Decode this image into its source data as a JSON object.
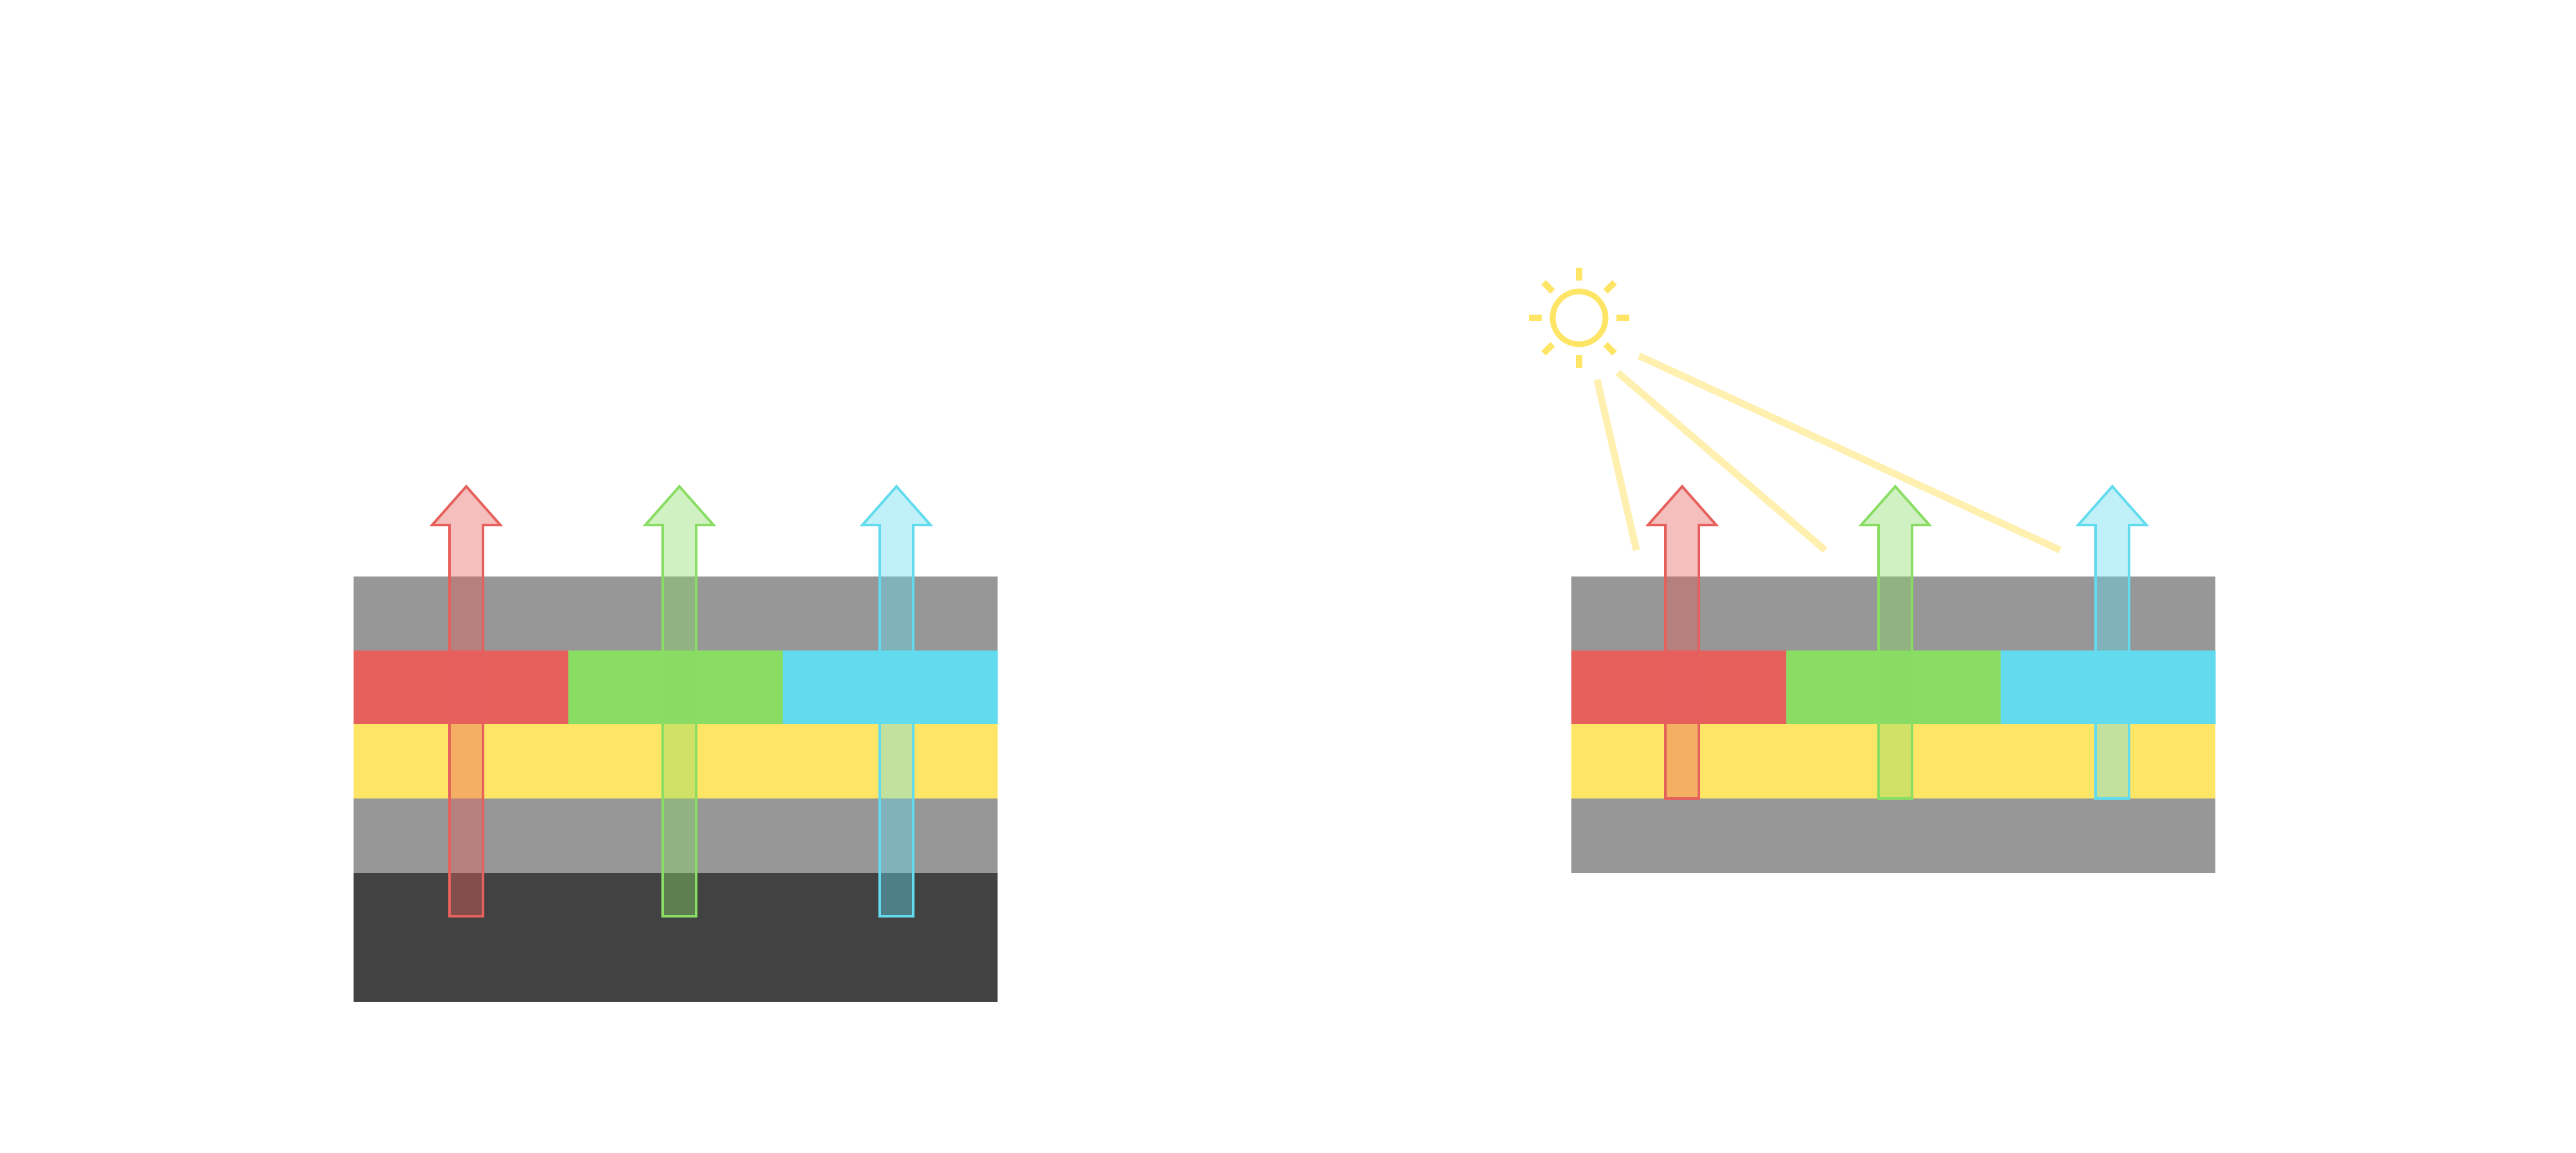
{
  "colors": {
    "background": "#ffffff",
    "gray_layer": "#979797",
    "dark_layer": "#424242",
    "red": "#e6605c",
    "green": "#89dd63",
    "cyan": "#63dbee",
    "yellow": "#ffe566",
    "light_ray": "#fff0b0"
  },
  "diagrams": [
    {
      "id": "left-stack",
      "layers": [
        "gray",
        "color-filter",
        "yellow",
        "gray",
        "dark"
      ],
      "arrows": [
        "red",
        "green",
        "cyan"
      ]
    },
    {
      "id": "right-stack",
      "layers": [
        "gray",
        "color-filter",
        "yellow",
        "gray"
      ],
      "arrows": [
        "red",
        "green",
        "cyan"
      ],
      "light_source": "sun-icon",
      "light_rays": 3
    }
  ]
}
